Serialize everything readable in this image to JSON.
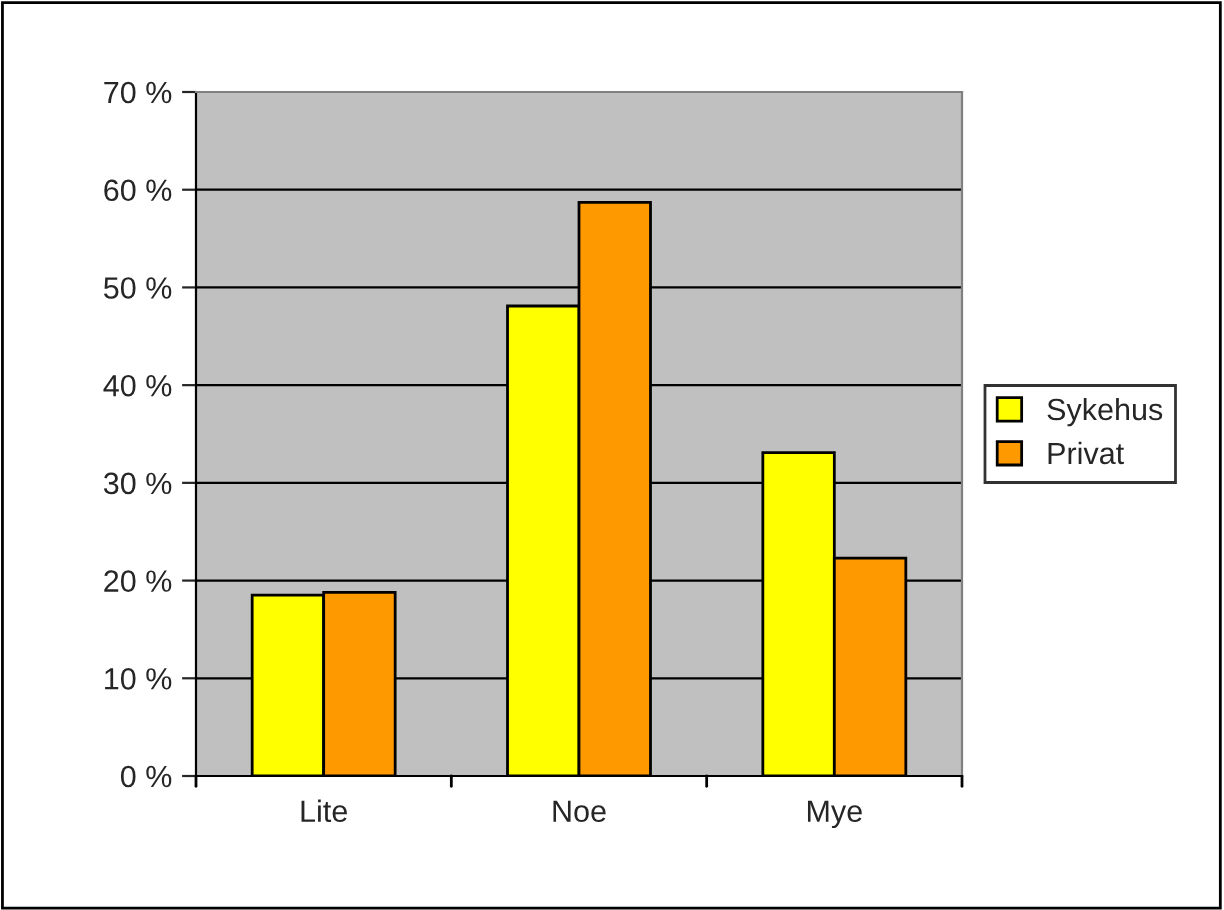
{
  "chart_data": {
    "type": "bar",
    "categories": [
      "Lite",
      "Noe",
      "Mye"
    ],
    "series": [
      {
        "name": "Sykehus",
        "color": "#ffff00",
        "values": [
          18.5,
          48.1,
          33.1
        ]
      },
      {
        "name": "Privat",
        "color": "#ff9900",
        "values": [
          18.8,
          58.7,
          22.3
        ]
      }
    ],
    "ylim": [
      0,
      70
    ],
    "yticks": [
      {
        "value": 0,
        "label": "0 %"
      },
      {
        "value": 10,
        "label": "10 %"
      },
      {
        "value": 20,
        "label": "20 %"
      },
      {
        "value": 30,
        "label": "30 %"
      },
      {
        "value": 40,
        "label": "40 %"
      },
      {
        "value": 50,
        "label": "50 %"
      },
      {
        "value": 60,
        "label": "60 %"
      },
      {
        "value": 70,
        "label": "70 %"
      }
    ],
    "grid": "y",
    "legend": "right"
  }
}
